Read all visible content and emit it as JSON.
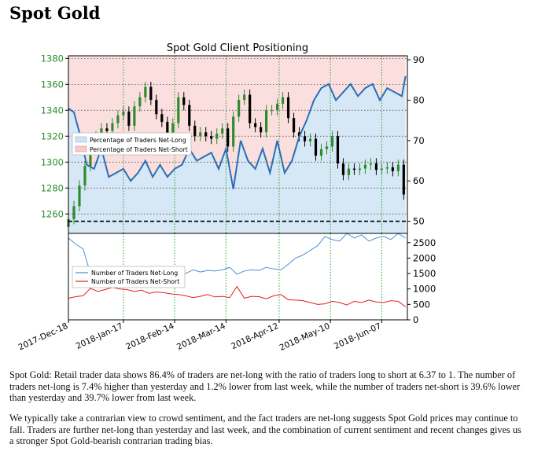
{
  "page_title": "Spot Gold",
  "paragraphs": [
    "Spot Gold: Retail trader data shows 86.4% of traders are net-long with the ratio of traders long to short at 6.37 to 1. The number of traders net-long is 7.4% higher than yesterday and 1.2% lower from last week, while the number of traders net-short is 39.6% lower than yesterday and 39.7% lower from last week.",
    "We typically take a contrarian view to crowd sentiment, and the fact traders are net-long suggests Spot Gold prices may continue to fall. Traders are further net-long than yesterday and last week, and the combination of current sentiment and recent changes gives us a stronger Spot Gold-bearish contrarian trading bias."
  ],
  "colors": {
    "price_up": "#2e8b2e",
    "price_down": "#000000",
    "net_long_line": "#2a6fb5",
    "net_long_fill": "#cfe3f5",
    "net_short_fill": "#f8caca",
    "traders_long": "#4a90d9",
    "traders_short": "#e02020",
    "left_axis": "#2e8b2e",
    "grid": "#2aa02a"
  },
  "chart_data": [
    {
      "type": "candlestick_and_line",
      "title": "Spot Gold Client Positioning",
      "left_axis_ticks": [
        1260,
        1280,
        1300,
        1320,
        1340,
        1360,
        1380
      ],
      "left_ylim": [
        1245,
        1382
      ],
      "right_axis_ticks": [
        50,
        60,
        70,
        80,
        90
      ],
      "right_ylim": [
        47,
        91
      ],
      "reference_line": 50,
      "legend": [
        "Percentage of Traders Net-Long",
        "Percentage of Traders Net-Short"
      ],
      "legend_position": "center-left",
      "x_ticks": [
        "2017-Dec-18",
        "2018-Jan-17",
        "2018-Feb-14",
        "2018-Mar-14",
        "2018-Apr-12",
        "2018-May-10",
        "2018-Jun-07"
      ],
      "x_tick_days": [
        0,
        30,
        58,
        86,
        115,
        143,
        171
      ],
      "x_range_days": [
        0,
        185
      ],
      "grid": true,
      "net_long_percent": {
        "days": [
          0,
          3,
          6,
          10,
          14,
          18,
          22,
          26,
          30,
          34,
          38,
          42,
          46,
          50,
          54,
          58,
          62,
          66,
          70,
          74,
          78,
          82,
          86,
          90,
          94,
          98,
          102,
          106,
          110,
          114,
          118,
          122,
          126,
          130,
          134,
          138,
          142,
          146,
          150,
          154,
          158,
          162,
          166,
          170,
          174,
          178,
          182,
          184
        ],
        "values": [
          78,
          77,
          72,
          64,
          63,
          68,
          61,
          62,
          63,
          60,
          62,
          65,
          61,
          64,
          61,
          63,
          64,
          68,
          65,
          66,
          67,
          63,
          68,
          58,
          70,
          65,
          63,
          68,
          62,
          70,
          62,
          65,
          71,
          75,
          80,
          83,
          84,
          80,
          82,
          84,
          81,
          83,
          84,
          80,
          83,
          82,
          81,
          86
        ]
      },
      "price_candles": {
        "days": [
          0,
          3,
          6,
          9,
          12,
          15,
          18,
          21,
          24,
          27,
          30,
          33,
          36,
          39,
          42,
          45,
          48,
          51,
          54,
          57,
          60,
          63,
          66,
          69,
          72,
          75,
          78,
          81,
          84,
          87,
          90,
          93,
          96,
          99,
          102,
          105,
          108,
          111,
          114,
          117,
          120,
          123,
          126,
          129,
          132,
          135,
          138,
          141,
          144,
          147,
          150,
          153,
          156,
          159,
          162,
          165,
          168,
          171,
          174,
          177,
          180,
          183
        ],
        "close": [
          1256,
          1266,
          1282,
          1297,
          1313,
          1320,
          1326,
          1324,
          1330,
          1336,
          1339,
          1328,
          1343,
          1350,
          1358,
          1348,
          1337,
          1331,
          1315,
          1330,
          1350,
          1344,
          1328,
          1320,
          1323,
          1320,
          1318,
          1322,
          1326,
          1312,
          1335,
          1348,
          1352,
          1330,
          1327,
          1323,
          1340,
          1340,
          1345,
          1350,
          1334,
          1323,
          1320,
          1316,
          1318,
          1305,
          1310,
          1312,
          1320,
          1299,
          1290,
          1295,
          1294,
          1295,
          1298,
          1299,
          1294,
          1295,
          1296,
          1293,
          1298,
          1275
        ]
      }
    },
    {
      "type": "line",
      "right_axis_ticks": [
        0,
        500,
        1000,
        1500,
        2000,
        2500
      ],
      "ylim": [
        0,
        2800
      ],
      "legend": [
        "Number of Traders Net-Long",
        "Number of Traders Net-Short"
      ],
      "legend_position": "center-left",
      "grid": true,
      "series": [
        {
          "name": "Number of Traders Net-Long",
          "days": [
            0,
            4,
            8,
            12,
            16,
            20,
            24,
            28,
            32,
            36,
            40,
            44,
            48,
            52,
            56,
            60,
            64,
            68,
            72,
            76,
            80,
            84,
            88,
            92,
            96,
            100,
            104,
            108,
            112,
            116,
            120,
            124,
            128,
            132,
            136,
            140,
            144,
            148,
            152,
            156,
            160,
            164,
            168,
            172,
            176,
            180,
            184
          ],
          "values": [
            2650,
            2450,
            2300,
            1500,
            1350,
            1420,
            1300,
            1380,
            1350,
            1280,
            1250,
            1320,
            1380,
            1420,
            1450,
            1520,
            1500,
            1620,
            1550,
            1600,
            1580,
            1620,
            1700,
            1480,
            1580,
            1620,
            1600,
            1700,
            1650,
            1620,
            1800,
            2000,
            2100,
            2250,
            2400,
            2700,
            2600,
            2550,
            2800,
            2650,
            2750,
            2550,
            2650,
            2700,
            2600,
            2800,
            2650
          ]
        },
        {
          "name": "Number of Traders Net-Short",
          "days": [
            0,
            4,
            8,
            12,
            16,
            20,
            24,
            28,
            32,
            36,
            40,
            44,
            48,
            52,
            56,
            60,
            64,
            68,
            72,
            76,
            80,
            84,
            88,
            92,
            96,
            100,
            104,
            108,
            112,
            116,
            120,
            124,
            128,
            132,
            136,
            140,
            144,
            148,
            152,
            156,
            160,
            164,
            168,
            172,
            176,
            180,
            184
          ],
          "values": [
            700,
            750,
            780,
            1020,
            920,
            980,
            1050,
            1000,
            980,
            920,
            960,
            860,
            900,
            880,
            840,
            820,
            780,
            720,
            760,
            820,
            740,
            760,
            720,
            1080,
            700,
            760,
            750,
            680,
            780,
            820,
            650,
            640,
            620,
            560,
            500,
            520,
            600,
            560,
            480,
            600,
            560,
            640,
            580,
            560,
            620,
            600,
            420
          ]
        }
      ]
    }
  ]
}
